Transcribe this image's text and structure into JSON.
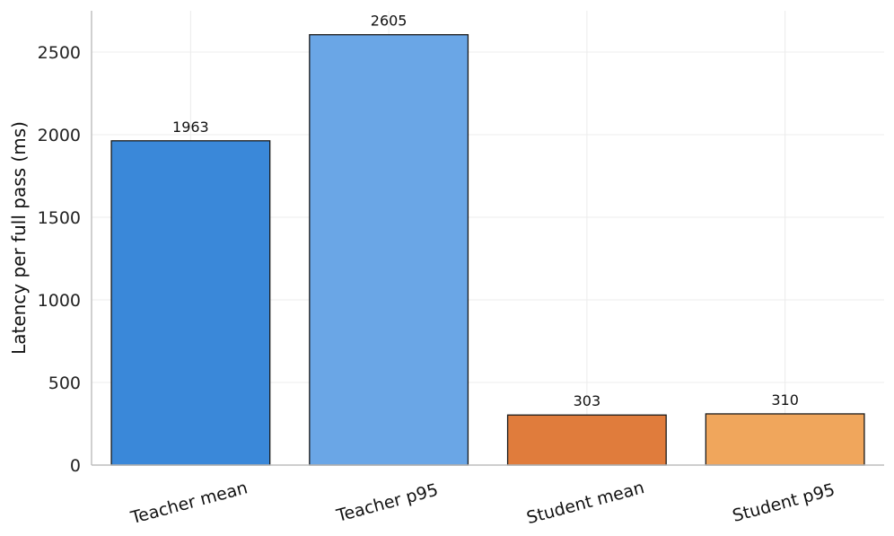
{
  "chart_data": {
    "type": "bar",
    "categories": [
      "Teacher mean",
      "Teacher p95",
      "Student mean",
      "Student p95"
    ],
    "values": [
      1963,
      2605,
      303,
      310
    ],
    "data_labels": [
      "1963",
      "2605",
      "303",
      "310"
    ],
    "colors": [
      "#3a88d9",
      "#6aa6e6",
      "#e07c3c",
      "#f0a65c"
    ],
    "edge_color": "#1a1a1a",
    "title": "",
    "xlabel": "",
    "ylabel": "Latency per full pass (ms)",
    "ylim": [
      0,
      2750
    ],
    "yticks": [
      0,
      500,
      1000,
      1500,
      2000,
      2500
    ],
    "grid": true,
    "legend": "none"
  }
}
